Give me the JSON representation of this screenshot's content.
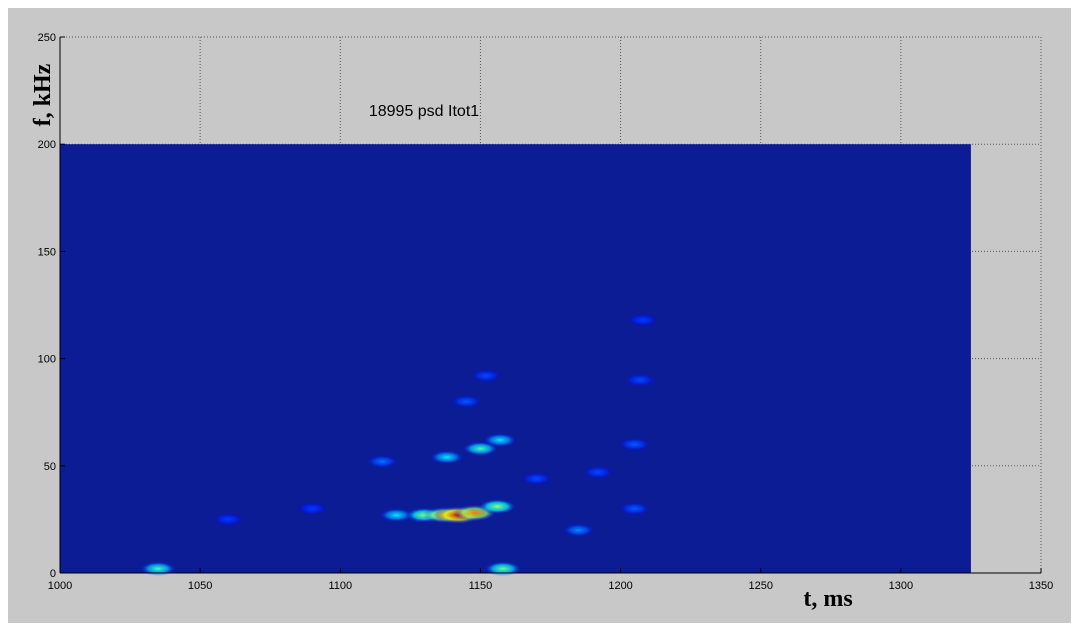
{
  "chart_data": {
    "type": "spectrogram",
    "title": "18995 psd Itot1",
    "xlabel": "t, ms",
    "ylabel": "f, kHz",
    "xlim": [
      1000,
      1350
    ],
    "ylim": [
      0,
      250
    ],
    "xticks": [
      1000,
      1050,
      1100,
      1150,
      1200,
      1250,
      1300,
      1350
    ],
    "yticks": [
      0,
      50,
      100,
      150,
      200,
      250
    ],
    "grid": true,
    "extent": [
      1000,
      1325,
      0,
      200
    ],
    "background_color": "#0c1c94",
    "x": [
      1120,
      1130,
      1137,
      1142,
      1148,
      1156,
      1115,
      1138,
      1150,
      1157,
      1145,
      1152,
      1035,
      1158,
      1185,
      1170,
      1192,
      1205,
      1205,
      1207,
      1208,
      1060,
      1090
    ],
    "y": [
      27,
      27,
      27,
      27,
      28,
      31,
      52,
      54,
      58,
      62,
      80,
      92,
      2,
      2,
      20,
      44,
      47,
      30,
      60,
      90,
      118,
      25,
      30
    ],
    "values": [
      0.3,
      0.5,
      0.75,
      1.0,
      0.8,
      0.5,
      0.15,
      0.3,
      0.4,
      0.3,
      0.12,
      0.1,
      0.4,
      0.45,
      0.18,
      0.1,
      0.1,
      0.12,
      0.12,
      0.1,
      0.08,
      0.08,
      0.08
    ]
  }
}
